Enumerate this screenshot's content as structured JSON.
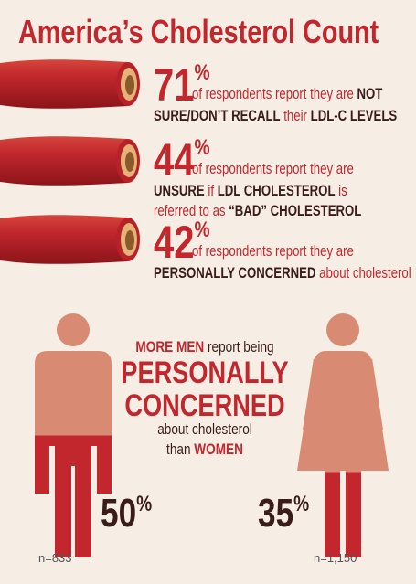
{
  "title": "America’s Cholesterol Count",
  "stats": [
    {
      "number": 71,
      "unit": "%",
      "lines": [
        [
          {
            "text": "of respondents report they are ",
            "strong": false
          },
          {
            "text": "NOT",
            "strong": true
          }
        ],
        [
          {
            "text": "SURE/DON’T RECALL",
            "strong": true
          },
          {
            "text": " their ",
            "strong": false
          },
          {
            "text": "LDL-C LEVELS",
            "strong": true
          }
        ]
      ]
    },
    {
      "number": 44,
      "unit": "%",
      "lines": [
        [
          {
            "text": "of respondents report they are",
            "strong": false
          }
        ],
        [
          {
            "text": "UNSURE",
            "strong": true
          },
          {
            "text": " if ",
            "strong": false
          },
          {
            "text": "LDL CHOLESTEROL",
            "strong": true
          },
          {
            "text": " is",
            "strong": false
          }
        ],
        [
          {
            "text": "referred to as ",
            "strong": false
          },
          {
            "text": "“BAD” CHOLESTEROL",
            "strong": true
          }
        ]
      ]
    },
    {
      "number": 42,
      "unit": "%",
      "lines": [
        [
          {
            "text": "of respondents report they are",
            "strong": false
          }
        ],
        [
          {
            "text": "PERSONALLY CONCERNED",
            "strong": true
          },
          {
            "text": " about cholesterol",
            "strong": false
          }
        ]
      ]
    }
  ],
  "comparison": {
    "intro": [
      {
        "text": "MORE MEN",
        "strong": true
      },
      {
        "text": " report being",
        "strong": false
      }
    ],
    "headline": [
      "PERSONALLY",
      "CONCERNED"
    ],
    "outro": [
      [
        {
          "text": "about cholesterol",
          "strong": false
        }
      ],
      [
        {
          "text": "than ",
          "strong": false
        },
        {
          "text": "WOMEN",
          "strong": true
        }
      ]
    ]
  },
  "men": {
    "percent": 50,
    "unit": "%",
    "n": "n=833"
  },
  "women": {
    "percent": 35,
    "unit": "%",
    "n": "n=1,150"
  }
}
